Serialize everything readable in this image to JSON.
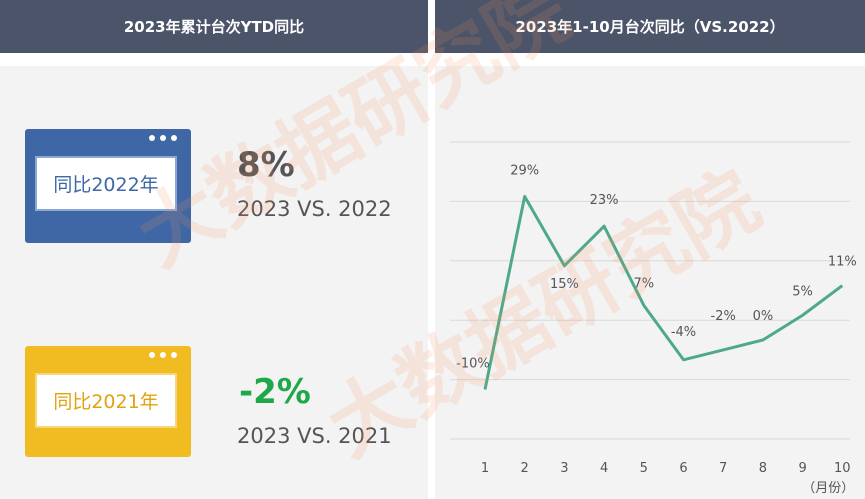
{
  "left_panel": {
    "header": "2023年累计台次YTD同比",
    "cards": [
      {
        "badge": "同比2022年",
        "value": "8%",
        "caption": "2023 VS. 2022"
      },
      {
        "badge": "同比2021年",
        "value": "-2%",
        "caption": "2023 VS. 2021"
      }
    ]
  },
  "right_panel": {
    "header": "2023年1-10月台次同比（VS.2022）"
  },
  "watermark": "大数据研究院",
  "colors": {
    "header_bg": "#4b5468",
    "badge_blue": "#3f67a6",
    "badge_yellow": "#f1bb22",
    "negative_value": "#1fa84a",
    "line": "#4ea98a"
  },
  "chart_data": {
    "type": "line",
    "title": "2023年1-10月台次同比（VS.2022）",
    "x": [
      1,
      2,
      3,
      4,
      5,
      6,
      7,
      8,
      9,
      10
    ],
    "x_unit": "（月份）",
    "series": [
      {
        "values": [
          -10,
          29,
          15,
          23,
          7,
          -4,
          -2,
          0,
          5,
          11
        ],
        "labels": [
          "-10%",
          "29%",
          "15%",
          "23%",
          "7%",
          "-4%",
          "-2%",
          "0%",
          "5%",
          "11%"
        ]
      }
    ],
    "ylim": [
      -20,
      40
    ],
    "grid": true,
    "legend": "none"
  }
}
